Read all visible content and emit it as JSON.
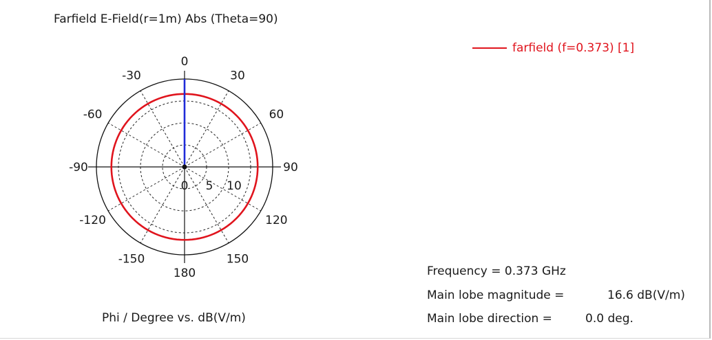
{
  "chart_data": {
    "type": "polar-line",
    "title": "Farfield E-Field(r=1m) Abs (Theta=90)",
    "xlabel": "Phi / Degree vs. dB(V/m)",
    "angle_ticks": [
      "0",
      "-30",
      "-60",
      "-90",
      "-120",
      "-150",
      "180",
      "150",
      "120",
      "90",
      "60",
      "30"
    ],
    "radial_ticks": [
      "0",
      "5",
      "10"
    ],
    "radial_range": [
      0,
      20
    ],
    "grid": true,
    "legend_position": "top-right",
    "series": [
      {
        "name": "farfield (f=0.373) [1]",
        "color": "#e0141d",
        "phi": [
          0,
          30,
          60,
          90,
          120,
          150,
          180,
          210,
          240,
          270,
          300,
          330,
          360
        ],
        "values": [
          16.6,
          16.6,
          16.6,
          16.6,
          16.6,
          16.6,
          16.6,
          16.6,
          16.6,
          16.6,
          16.6,
          16.6,
          16.6
        ]
      }
    ],
    "main_lobe_marker": {
      "direction": 0.0,
      "color": "#1f2bd8"
    }
  },
  "legend": {
    "label": "farfield (f=0.373) [1]"
  },
  "info": {
    "frequency": "Frequency = 0.373 GHz",
    "magnitude_label": "Main lobe magnitude =",
    "magnitude_value": "16.6 dB(V/m)",
    "direction_label": "Main lobe direction =",
    "direction_value": "0.0 deg."
  }
}
